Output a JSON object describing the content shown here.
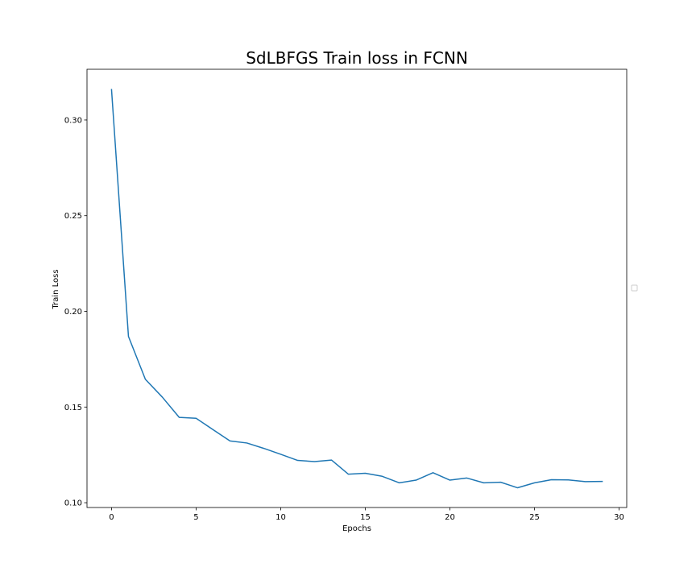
{
  "chart_data": {
    "type": "line",
    "title": "SdLBFGS Train loss in FCNN",
    "xlabel": "Epochs",
    "ylabel": "Train Loss",
    "xlim": [
      -1.45,
      30.45
    ],
    "ylim": [
      0.0975,
      0.3265
    ],
    "xticks": [
      0,
      5,
      10,
      15,
      20,
      25,
      30
    ],
    "xtick_labels": [
      "0",
      "5",
      "10",
      "15",
      "20",
      "25",
      "30"
    ],
    "yticks": [
      0.1,
      0.15,
      0.2,
      0.25,
      0.3
    ],
    "ytick_labels": [
      "0.10",
      "0.15",
      "0.20",
      "0.25",
      "0.30"
    ],
    "grid": false,
    "legend": "center-right, empty",
    "series": [
      {
        "color": "#1f77b4",
        "x": [
          0,
          1,
          2,
          3,
          4,
          5,
          6,
          7,
          8,
          9,
          10,
          11,
          12,
          13,
          14,
          15,
          16,
          17,
          18,
          19,
          20,
          21,
          22,
          23,
          24,
          25,
          26,
          27,
          28,
          29
        ],
        "values": [
          0.3159,
          0.1869,
          0.1645,
          0.1552,
          0.1446,
          0.1441,
          0.1382,
          0.1323,
          0.1312,
          0.1284,
          0.1253,
          0.1221,
          0.1215,
          0.1223,
          0.1149,
          0.1154,
          0.1138,
          0.1104,
          0.1118,
          0.1157,
          0.1118,
          0.1129,
          0.1104,
          0.1107,
          0.1078,
          0.1104,
          0.112,
          0.1119,
          0.111,
          0.1111
        ]
      }
    ]
  }
}
